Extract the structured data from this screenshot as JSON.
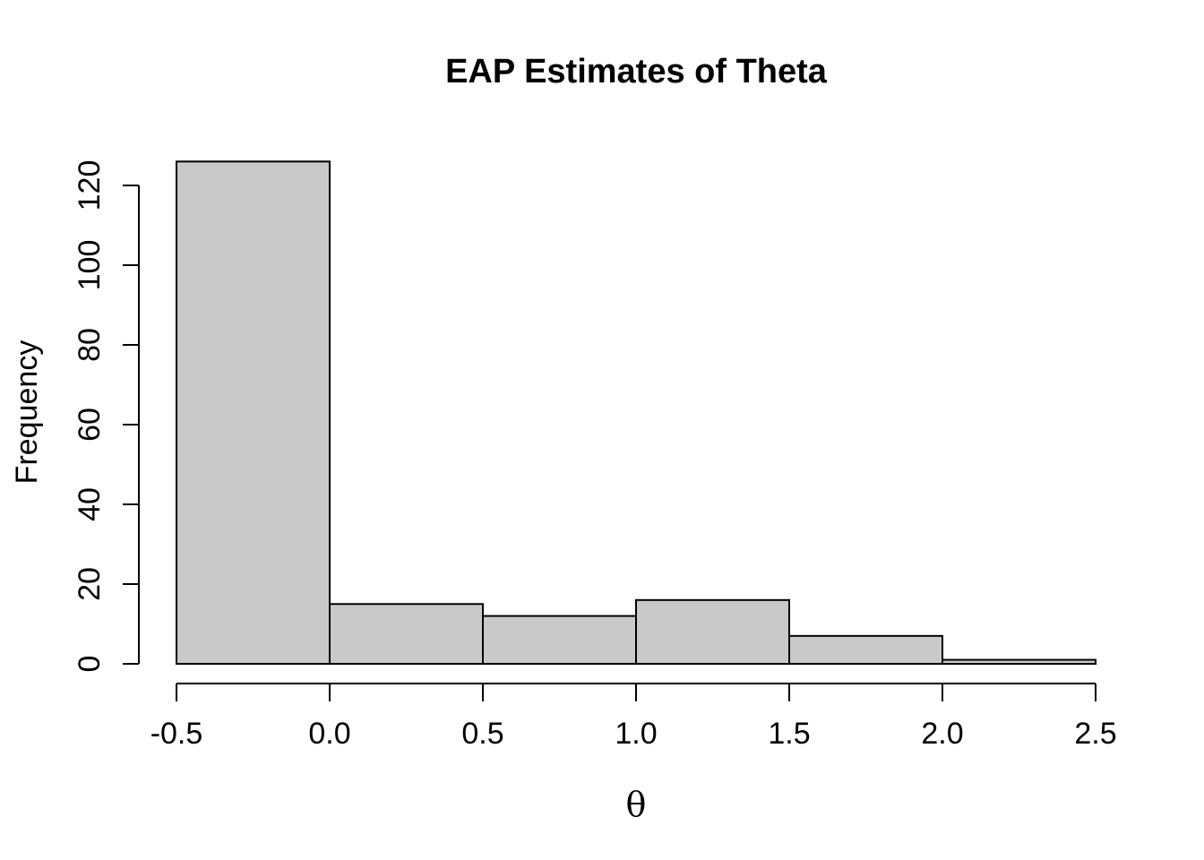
{
  "chart_data": {
    "type": "bar",
    "subtype": "histogram",
    "title": "EAP Estimates of Theta",
    "xlabel": "θ",
    "ylabel": "Frequency",
    "bin_edges": [
      -0.5,
      0.0,
      0.5,
      1.0,
      1.5,
      2.0,
      2.5
    ],
    "counts": [
      126,
      15,
      12,
      16,
      7,
      1
    ],
    "x_tick_labels": [
      "-0.5",
      "0.0",
      "0.5",
      "1.0",
      "1.5",
      "2.0",
      "2.5"
    ],
    "x_tick_values": [
      -0.5,
      0.0,
      0.5,
      1.0,
      1.5,
      2.0,
      2.5
    ],
    "y_tick_labels": [
      "0",
      "20",
      "40",
      "60",
      "80",
      "100",
      "120"
    ],
    "y_tick_values": [
      0,
      20,
      40,
      60,
      80,
      100,
      120
    ],
    "xlim": [
      -0.5,
      2.5
    ],
    "ylim": [
      0,
      126
    ],
    "grid": false,
    "legend": null,
    "bar_fill_color": "#C9C9C9",
    "bar_border_color": "#000000",
    "axis_color": "#000000",
    "text_color": "#000000",
    "background_color": "#FFFFFF"
  }
}
